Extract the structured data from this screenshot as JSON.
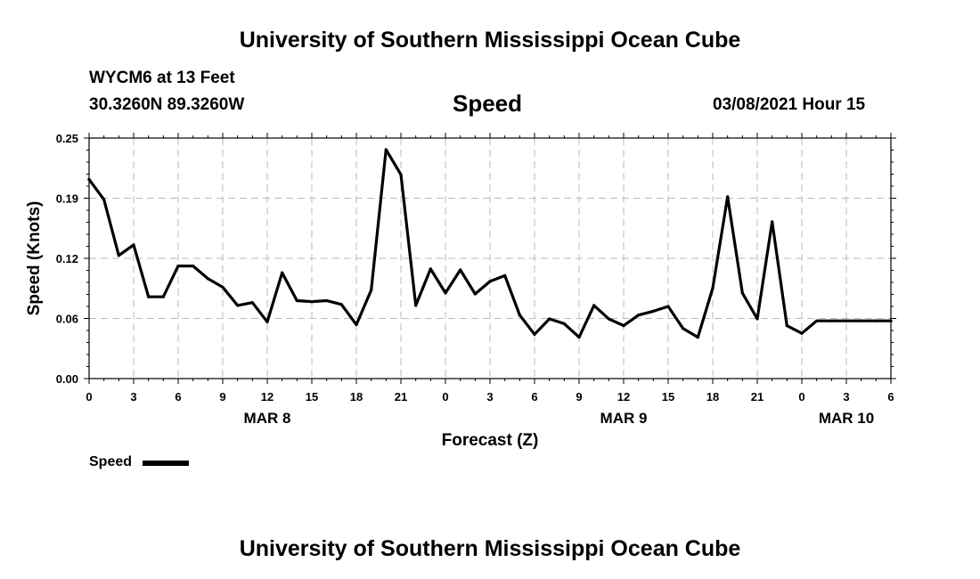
{
  "header": {
    "title": "University of Southern Mississippi Ocean Cube",
    "station": "WYCM6 at 13 Feet",
    "coords": "30.3260N 89.3260W",
    "subtitle": "Speed",
    "datetime": "03/08/2021 Hour 15"
  },
  "footer": {
    "title": "University of Southern Mississippi Ocean Cube"
  },
  "legend": {
    "label": "Speed"
  },
  "colors": {
    "line": "#000000",
    "grid": "#bbbbbb"
  },
  "chart_data": {
    "type": "line",
    "ylabel": "Speed (Knots)",
    "xlabel": "Forecast (Z)",
    "ylim": [
      0.0,
      0.25
    ],
    "yticks": [
      "0.00",
      "0.06",
      "0.12",
      "0.19",
      "0.25"
    ],
    "xlim": [
      0,
      54
    ],
    "xticks": [
      {
        "h": 0,
        "label": "0"
      },
      {
        "h": 3,
        "label": "3"
      },
      {
        "h": 6,
        "label": "6"
      },
      {
        "h": 9,
        "label": "9"
      },
      {
        "h": 12,
        "label": "12"
      },
      {
        "h": 15,
        "label": "15"
      },
      {
        "h": 18,
        "label": "18"
      },
      {
        "h": 21,
        "label": "21"
      },
      {
        "h": 24,
        "label": "0"
      },
      {
        "h": 27,
        "label": "3"
      },
      {
        "h": 30,
        "label": "6"
      },
      {
        "h": 33,
        "label": "9"
      },
      {
        "h": 36,
        "label": "12"
      },
      {
        "h": 39,
        "label": "15"
      },
      {
        "h": 42,
        "label": "18"
      },
      {
        "h": 45,
        "label": "21"
      },
      {
        "h": 48,
        "label": "0"
      },
      {
        "h": 51,
        "label": "3"
      },
      {
        "h": 54,
        "label": "6"
      }
    ],
    "date_labels": [
      {
        "h": 12,
        "label": "MAR 8"
      },
      {
        "h": 36,
        "label": "MAR 9"
      },
      {
        "h": 51,
        "label": "MAR 10"
      }
    ],
    "grid": true,
    "series": [
      {
        "name": "Speed",
        "x": [
          0,
          1,
          2,
          3,
          4,
          5,
          6,
          7,
          8,
          9,
          10,
          11,
          12,
          13,
          14,
          15,
          16,
          17,
          18,
          19,
          20,
          21,
          22,
          23,
          24,
          25,
          26,
          27,
          28,
          29,
          30,
          31,
          32,
          33,
          34,
          35,
          36,
          37,
          38,
          39,
          40,
          41,
          42,
          43,
          44,
          45,
          46,
          47,
          48,
          49,
          50,
          51,
          52,
          53,
          54
        ],
        "values": [
          0.207,
          0.186,
          0.128,
          0.139,
          0.085,
          0.085,
          0.117,
          0.117,
          0.104,
          0.095,
          0.076,
          0.079,
          0.059,
          0.11,
          0.081,
          0.08,
          0.081,
          0.077,
          0.056,
          0.092,
          0.238,
          0.212,
          0.076,
          0.114,
          0.089,
          0.113,
          0.088,
          0.101,
          0.107,
          0.066,
          0.046,
          0.062,
          0.057,
          0.043,
          0.076,
          0.062,
          0.055,
          0.066,
          0.07,
          0.075,
          0.052,
          0.043,
          0.094,
          0.189,
          0.089,
          0.062,
          0.163,
          0.055,
          0.047,
          0.06,
          0.06,
          0.06,
          0.06,
          0.06,
          0.06
        ]
      }
    ]
  }
}
